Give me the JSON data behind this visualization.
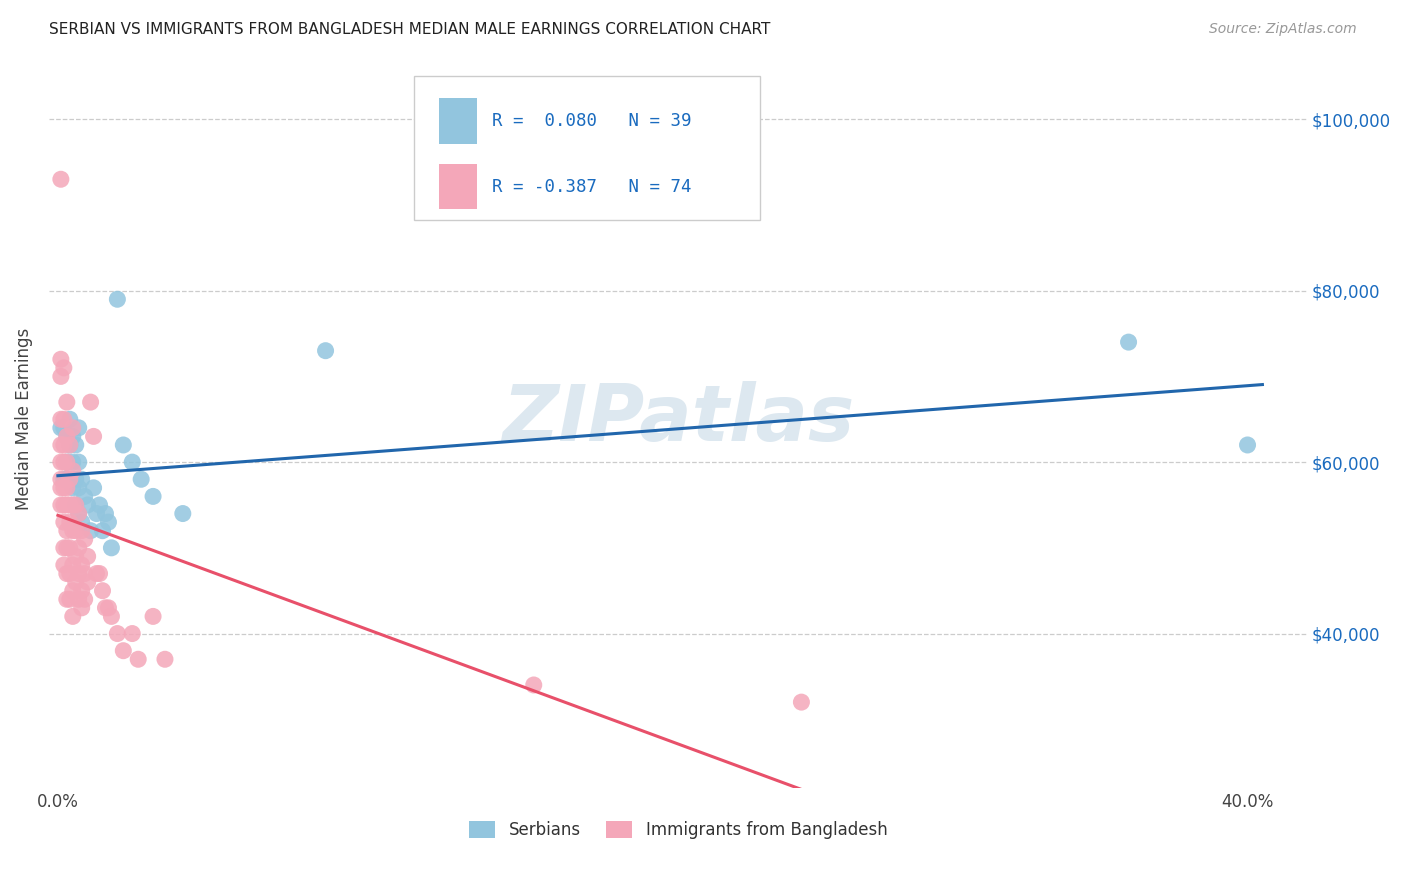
{
  "title": "SERBIAN VS IMMIGRANTS FROM BANGLADESH MEDIAN MALE EARNINGS CORRELATION CHART",
  "source": "Source: ZipAtlas.com",
  "ylabel": "Median Male Earnings",
  "ytick_values": [
    40000,
    60000,
    80000,
    100000
  ],
  "ymin": 22000,
  "ymax": 108000,
  "xmin": -0.003,
  "xmax": 0.42,
  "legend_text_1": "R =  0.080   N = 39",
  "legend_text_2": "R = -0.387   N = 74",
  "color_serbian": "#92C5DE",
  "color_bangladesh": "#F4A7B9",
  "color_line_serbian": "#2166AC",
  "color_line_bangladesh": "#E8506A",
  "color_line_ext": "#BBBBBB",
  "watermark": "ZIPatlas",
  "serbian_points": [
    [
      0.001,
      64000
    ],
    [
      0.002,
      58000
    ],
    [
      0.002,
      64000
    ],
    [
      0.003,
      63000
    ],
    [
      0.003,
      60000
    ],
    [
      0.003,
      58000
    ],
    [
      0.004,
      65000
    ],
    [
      0.004,
      62000
    ],
    [
      0.005,
      63000
    ],
    [
      0.005,
      60000
    ],
    [
      0.005,
      57000
    ],
    [
      0.006,
      62000
    ],
    [
      0.006,
      58000
    ],
    [
      0.006,
      55000
    ],
    [
      0.007,
      64000
    ],
    [
      0.007,
      60000
    ],
    [
      0.007,
      57000
    ],
    [
      0.007,
      54000
    ],
    [
      0.008,
      58000
    ],
    [
      0.008,
      53000
    ],
    [
      0.009,
      56000
    ],
    [
      0.01,
      55000
    ],
    [
      0.011,
      52000
    ],
    [
      0.012,
      57000
    ],
    [
      0.013,
      54000
    ],
    [
      0.014,
      55000
    ],
    [
      0.015,
      52000
    ],
    [
      0.016,
      54000
    ],
    [
      0.017,
      53000
    ],
    [
      0.018,
      50000
    ],
    [
      0.02,
      79000
    ],
    [
      0.022,
      62000
    ],
    [
      0.025,
      60000
    ],
    [
      0.028,
      58000
    ],
    [
      0.032,
      56000
    ],
    [
      0.042,
      54000
    ],
    [
      0.09,
      73000
    ],
    [
      0.36,
      74000
    ],
    [
      0.4,
      62000
    ]
  ],
  "bangladesh_points": [
    [
      0.001,
      93000
    ],
    [
      0.001,
      72000
    ],
    [
      0.001,
      70000
    ],
    [
      0.001,
      65000
    ],
    [
      0.001,
      62000
    ],
    [
      0.001,
      60000
    ],
    [
      0.001,
      58000
    ],
    [
      0.001,
      57000
    ],
    [
      0.001,
      55000
    ],
    [
      0.002,
      71000
    ],
    [
      0.002,
      65000
    ],
    [
      0.002,
      62000
    ],
    [
      0.002,
      60000
    ],
    [
      0.002,
      57000
    ],
    [
      0.002,
      55000
    ],
    [
      0.002,
      53000
    ],
    [
      0.002,
      50000
    ],
    [
      0.002,
      48000
    ],
    [
      0.003,
      67000
    ],
    [
      0.003,
      63000
    ],
    [
      0.003,
      60000
    ],
    [
      0.003,
      57000
    ],
    [
      0.003,
      55000
    ],
    [
      0.003,
      52000
    ],
    [
      0.003,
      50000
    ],
    [
      0.003,
      47000
    ],
    [
      0.003,
      44000
    ],
    [
      0.004,
      62000
    ],
    [
      0.004,
      58000
    ],
    [
      0.004,
      55000
    ],
    [
      0.004,
      53000
    ],
    [
      0.004,
      50000
    ],
    [
      0.004,
      47000
    ],
    [
      0.004,
      44000
    ],
    [
      0.005,
      64000
    ],
    [
      0.005,
      59000
    ],
    [
      0.005,
      55000
    ],
    [
      0.005,
      52000
    ],
    [
      0.005,
      48000
    ],
    [
      0.005,
      45000
    ],
    [
      0.005,
      42000
    ],
    [
      0.006,
      55000
    ],
    [
      0.006,
      52000
    ],
    [
      0.006,
      49000
    ],
    [
      0.006,
      46000
    ],
    [
      0.007,
      54000
    ],
    [
      0.007,
      50000
    ],
    [
      0.007,
      47000
    ],
    [
      0.007,
      44000
    ],
    [
      0.008,
      52000
    ],
    [
      0.008,
      48000
    ],
    [
      0.008,
      45000
    ],
    [
      0.008,
      43000
    ],
    [
      0.009,
      51000
    ],
    [
      0.009,
      47000
    ],
    [
      0.009,
      44000
    ],
    [
      0.01,
      49000
    ],
    [
      0.01,
      46000
    ],
    [
      0.011,
      67000
    ],
    [
      0.012,
      63000
    ],
    [
      0.013,
      47000
    ],
    [
      0.014,
      47000
    ],
    [
      0.015,
      45000
    ],
    [
      0.016,
      43000
    ],
    [
      0.017,
      43000
    ],
    [
      0.018,
      42000
    ],
    [
      0.02,
      40000
    ],
    [
      0.022,
      38000
    ],
    [
      0.025,
      40000
    ],
    [
      0.027,
      37000
    ],
    [
      0.032,
      42000
    ],
    [
      0.036,
      37000
    ],
    [
      0.16,
      34000
    ],
    [
      0.25,
      32000
    ]
  ]
}
